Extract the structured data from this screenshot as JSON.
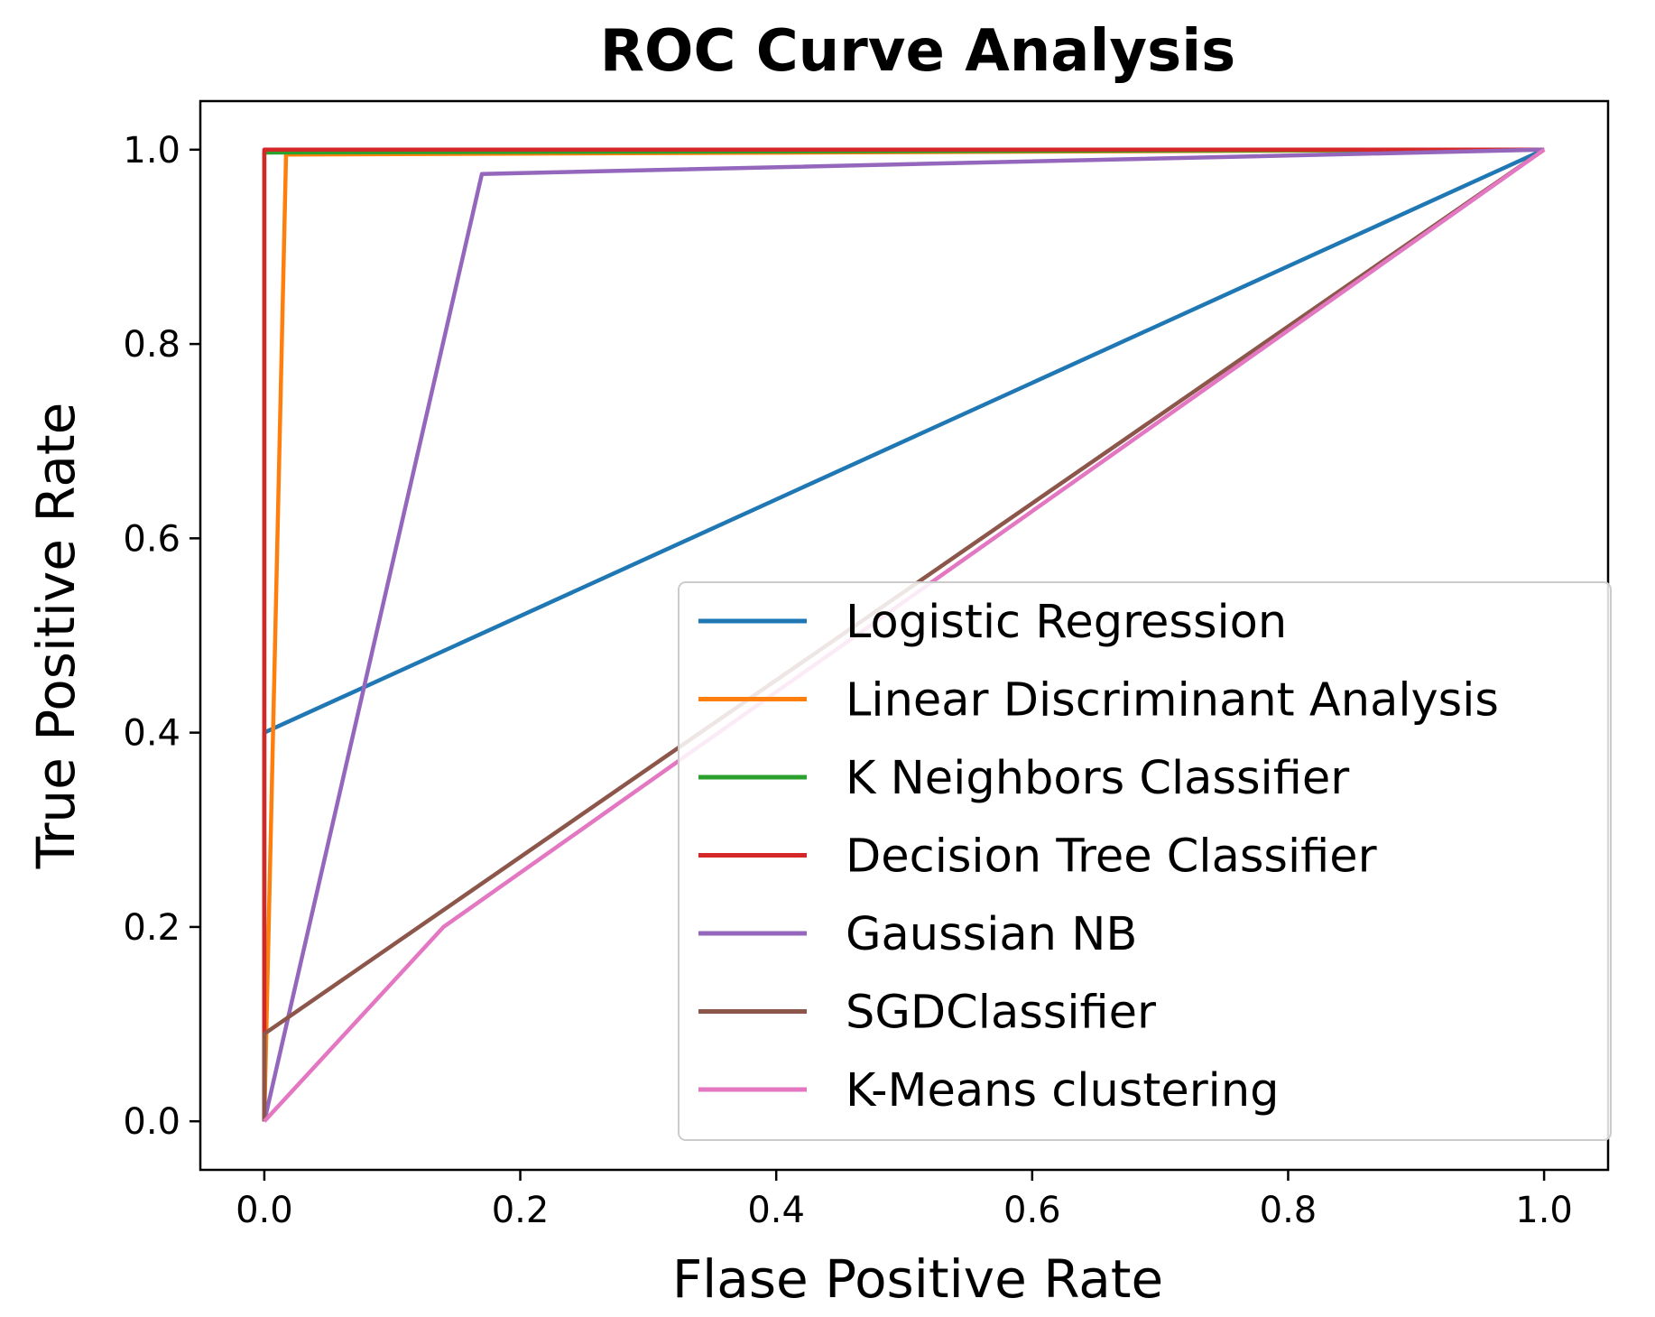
{
  "chart_data": {
    "type": "line",
    "title": "ROC Curve Analysis",
    "xlabel": "Flase Positive Rate",
    "ylabel": "True Positive Rate",
    "xlim": [
      -0.05,
      1.05
    ],
    "ylim": [
      -0.05,
      1.05
    ],
    "xticks": [
      0.0,
      0.2,
      0.4,
      0.6,
      0.8,
      1.0
    ],
    "yticks": [
      0.0,
      0.2,
      0.4,
      0.6,
      0.8,
      1.0
    ],
    "xtick_labels": [
      "0.0",
      "0.2",
      "0.4",
      "0.6",
      "0.8",
      "1.0"
    ],
    "ytick_labels": [
      "0.0",
      "0.2",
      "0.4",
      "0.6",
      "0.8",
      "1.0"
    ],
    "grid": false,
    "legend_position": "lower-right",
    "series": [
      {
        "name": "Logistic Regression",
        "color": "#1f77b4",
        "x": [
          0.0,
          0.0,
          1.0
        ],
        "y": [
          0.0,
          0.4,
          1.0
        ]
      },
      {
        "name": "Linear Discriminant Analysis",
        "color": "#ff7f0e",
        "x": [
          0.0,
          0.017,
          1.0
        ],
        "y": [
          0.0,
          0.995,
          1.0
        ]
      },
      {
        "name": "K Neighbors Classifier",
        "color": "#2ca02c",
        "x": [
          0.0,
          0.0,
          1.0
        ],
        "y": [
          0.0,
          0.997,
          1.0
        ]
      },
      {
        "name": "Decision Tree Classifier",
        "color": "#d62728",
        "x": [
          0.0,
          0.0,
          1.0
        ],
        "y": [
          0.0,
          1.0,
          1.0
        ]
      },
      {
        "name": "Gaussian NB",
        "color": "#9467bd",
        "x": [
          0.0,
          0.17,
          1.0
        ],
        "y": [
          0.0,
          0.975,
          1.0
        ]
      },
      {
        "name": "SGDClassifier",
        "color": "#8c564b",
        "x": [
          0.0,
          0.0,
          1.0
        ],
        "y": [
          0.0,
          0.09,
          1.0
        ]
      },
      {
        "name": "K-Means clustering",
        "color": "#e377c2",
        "x": [
          0.0,
          0.14,
          1.0
        ],
        "y": [
          0.0,
          0.2,
          1.0
        ]
      }
    ]
  }
}
